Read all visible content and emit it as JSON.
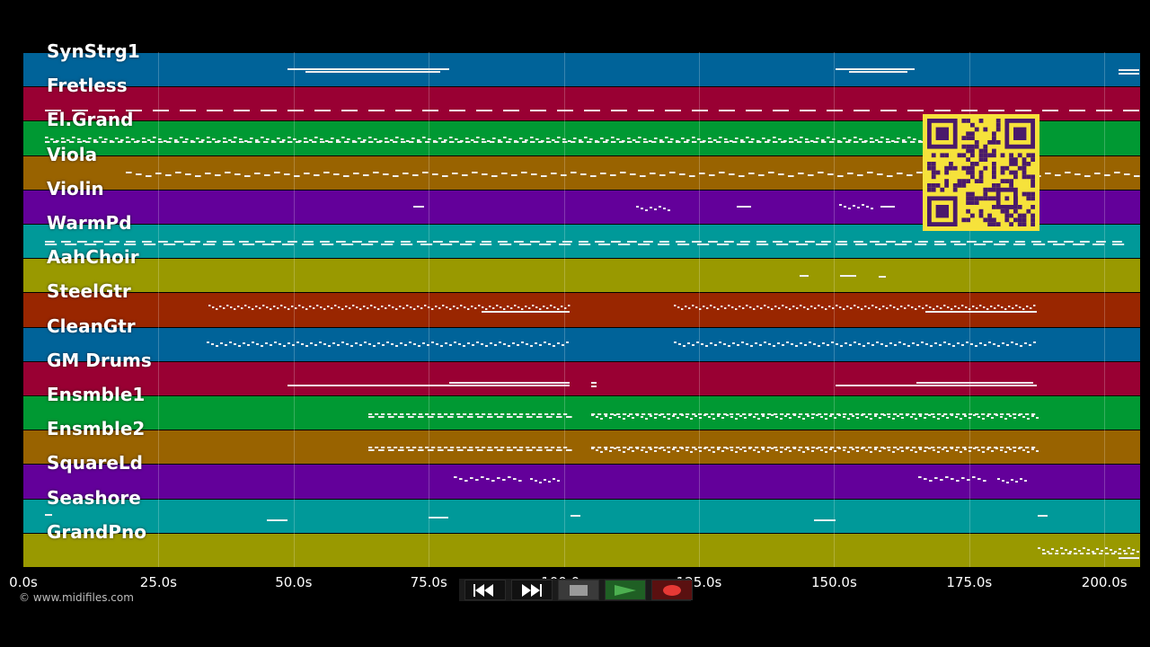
{
  "tracks": [
    {
      "name": "SynStrg1",
      "color": "#006399"
    },
    {
      "name": "Fretless",
      "color": "#990033"
    },
    {
      "name": "El.Grand",
      "color": "#009933"
    },
    {
      "name": "Viola",
      "color": "#996300"
    },
    {
      "name": "Violin",
      "color": "#63009a"
    },
    {
      "name": "WarmPd",
      "color": "#009999"
    },
    {
      "name": "AahChoir",
      "color": "#999900"
    },
    {
      "name": "SteelGtr",
      "color": "#992600"
    },
    {
      "name": "CleanGtr",
      "color": "#006399"
    },
    {
      "name": "GM Drums",
      "color": "#990033"
    },
    {
      "name": "Ensmble1",
      "color": "#009933"
    },
    {
      "name": "Ensmble2",
      "color": "#996300"
    },
    {
      "name": "SquareLd",
      "color": "#63009a"
    },
    {
      "name": "Seashore",
      "color": "#009999"
    },
    {
      "name": "GrandPno",
      "color": "#999900"
    }
  ],
  "timeline": {
    "ticks": [
      "0.0s",
      "25.0s",
      "50.0s",
      "75.0s",
      "100.0s",
      "125.0s",
      "150.0s",
      "175.0s",
      "200.0s"
    ]
  },
  "copyright": "© www.midifiles.com",
  "transport": {
    "rewind_icon": "rewind-icon",
    "fast_forward_icon": "fast-forward-icon",
    "stop_icon": "stop-icon",
    "play_icon": "play-icon",
    "record_icon": "record-icon",
    "play_color": "#4caf50",
    "record_color": "#e53935"
  },
  "qr_code": {
    "color": "#f6e23b",
    "module_color": "#4a1a6b"
  }
}
